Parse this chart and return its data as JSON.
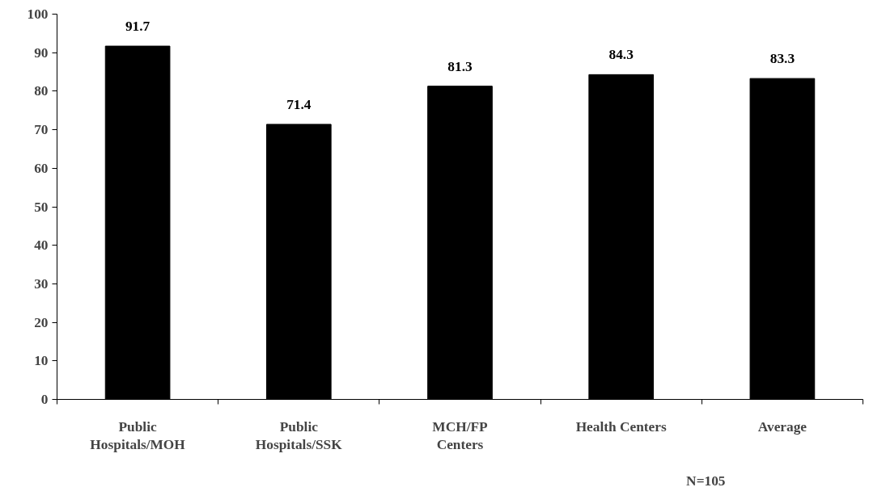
{
  "chart_data": {
    "type": "bar",
    "categories": [
      "Public\nHospitals/MOH",
      "Public\nHospitals/SSK",
      "MCH/FP\nCenters",
      "Health Centers",
      "Average"
    ],
    "values": [
      91.7,
      71.4,
      81.3,
      84.3,
      83.3
    ],
    "color": "#000000",
    "ylim": [
      0,
      100
    ],
    "yticks": [
      0,
      10,
      20,
      30,
      40,
      50,
      60,
      70,
      80,
      90,
      100
    ],
    "grid": false,
    "data_labels": true,
    "annotations": [
      "N=105"
    ]
  }
}
